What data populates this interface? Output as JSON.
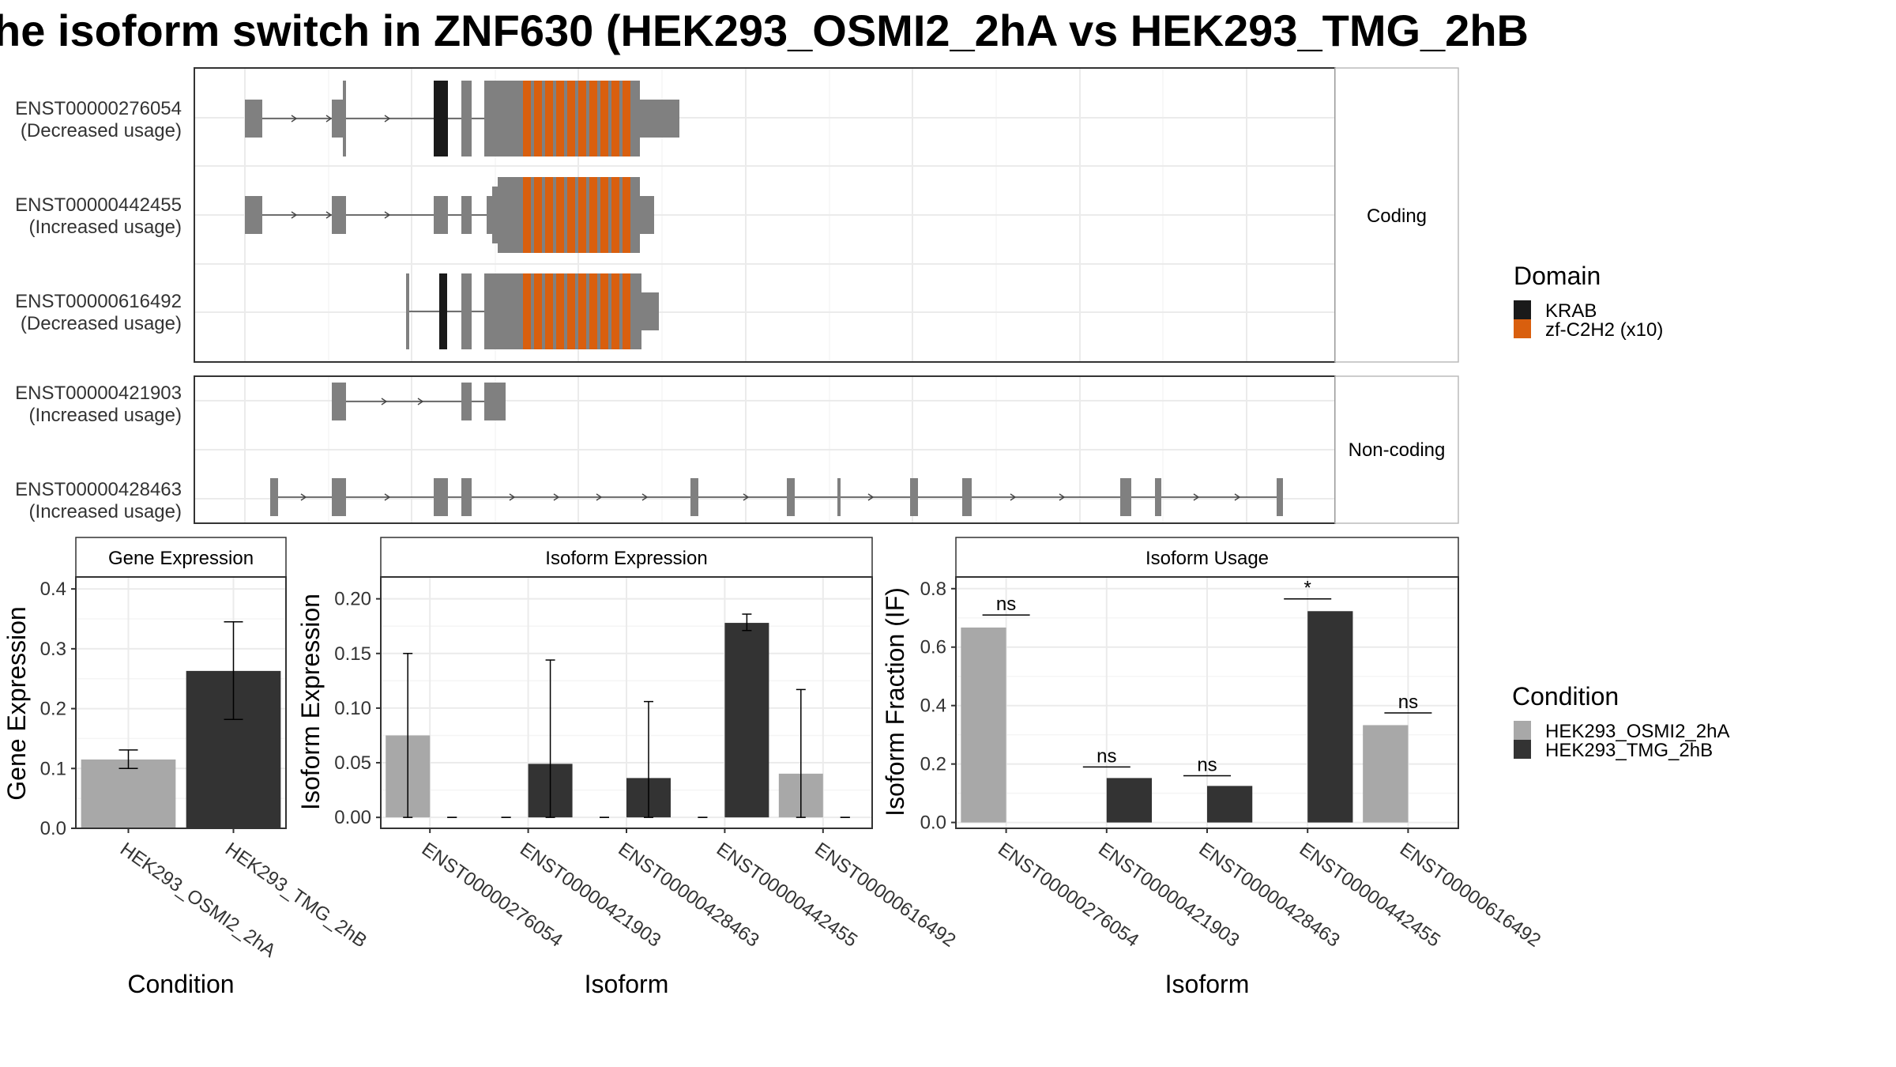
{
  "title": "he isoform switch in ZNF630 (HEK293_OSMI2_2hA vs HEK293_TMG_2hB",
  "colors": {
    "exon": "#808080",
    "krab": "#1a1a1a",
    "zf": "#d95f0e",
    "osmi": "#a8a8a8",
    "tmg": "#333333"
  },
  "domain_legend": {
    "title": "Domain",
    "items": [
      {
        "label": "KRAB",
        "color": "#1a1a1a"
      },
      {
        "label": "zf-C2H2 (x10)",
        "color": "#d95f0e"
      }
    ]
  },
  "condition_legend": {
    "title": "Condition",
    "items": [
      {
        "label": "HEK293_OSMI2_2hA",
        "color": "#a8a8a8"
      },
      {
        "label": "HEK293_TMG_2hB",
        "color": "#333333"
      }
    ]
  },
  "structure": {
    "coding_label": "Coding",
    "noncoding_label": "Non-coding",
    "coding": [
      {
        "id": "ENST00000276054",
        "usage": "(Decreased usage)"
      },
      {
        "id": "ENST00000442455",
        "usage": "(Increased usage)"
      },
      {
        "id": "ENST00000616492",
        "usage": "(Decreased usage)"
      }
    ],
    "noncoding": [
      {
        "id": "ENST00000421903",
        "usage": "(Increased usage)"
      },
      {
        "id": "ENST00000428463",
        "usage": "(Increased usage)"
      }
    ]
  },
  "chart_data": [
    {
      "type": "bar",
      "title": "Gene Expression",
      "xlabel": "Condition",
      "ylabel": "Gene Expression",
      "categories": [
        "HEK293_OSMI2_2hA",
        "HEK293_TMG_2hB"
      ],
      "values": [
        0.115,
        0.263
      ],
      "error_low": [
        0.1,
        0.182
      ],
      "error_high": [
        0.131,
        0.345
      ],
      "ylim": [
        0,
        0.42
      ],
      "yticks": [
        "0.0",
        "0.1",
        "0.2",
        "0.3",
        "0.4"
      ],
      "ytick_values": [
        0,
        0.1,
        0.2,
        0.3,
        0.4
      ]
    },
    {
      "type": "bar",
      "title": "Isoform Expression",
      "xlabel": "Isoform",
      "ylabel": "Isoform Expression",
      "categories": [
        "ENST00000276054",
        "ENST00000421903",
        "ENST00000428463",
        "ENST00000442455",
        "ENST00000616492"
      ],
      "series": [
        {
          "name": "HEK293_OSMI2_2hA",
          "values": [
            0.075,
            0.0,
            0.0,
            0.0,
            0.04
          ],
          "error_low": [
            0.0,
            0.0,
            0.0,
            0.0,
            0.0
          ],
          "error_high": [
            0.15,
            0.0,
            0.0,
            0.0,
            0.117
          ]
        },
        {
          "name": "HEK293_TMG_2hB",
          "values": [
            0.0,
            0.049,
            0.036,
            0.178,
            0.0
          ],
          "error_low": [
            0.0,
            0.0,
            0.0,
            0.171,
            0.0
          ],
          "error_high": [
            0.0,
            0.144,
            0.106,
            0.186,
            0.0
          ]
        }
      ],
      "ylim": [
        -0.01,
        0.22
      ],
      "yticks": [
        "0.00",
        "0.05",
        "0.10",
        "0.15",
        "0.20"
      ],
      "ytick_values": [
        0,
        0.05,
        0.1,
        0.15,
        0.2
      ]
    },
    {
      "type": "bar",
      "title": "Isoform Usage",
      "xlabel": "Isoform",
      "ylabel": "Isoform Fraction (IF)",
      "categories": [
        "ENST00000276054",
        "ENST00000421903",
        "ENST00000428463",
        "ENST00000442455",
        "ENST00000616492"
      ],
      "series": [
        {
          "name": "HEK293_OSMI2_2hA",
          "values": [
            0.667,
            0,
            0,
            0,
            0.333
          ]
        },
        {
          "name": "HEK293_TMG_2hB",
          "values": [
            0,
            0.152,
            0.125,
            0.723,
            0
          ]
        }
      ],
      "annotations": [
        "ns",
        "ns",
        "ns",
        "*",
        "ns"
      ],
      "annotation_y": [
        0.71,
        0.19,
        0.16,
        0.765,
        0.375
      ],
      "ylim": [
        -0.02,
        0.84
      ],
      "yticks": [
        "0.0",
        "0.2",
        "0.4",
        "0.6",
        "0.8"
      ],
      "ytick_values": [
        0,
        0.2,
        0.4,
        0.6,
        0.8
      ]
    }
  ]
}
